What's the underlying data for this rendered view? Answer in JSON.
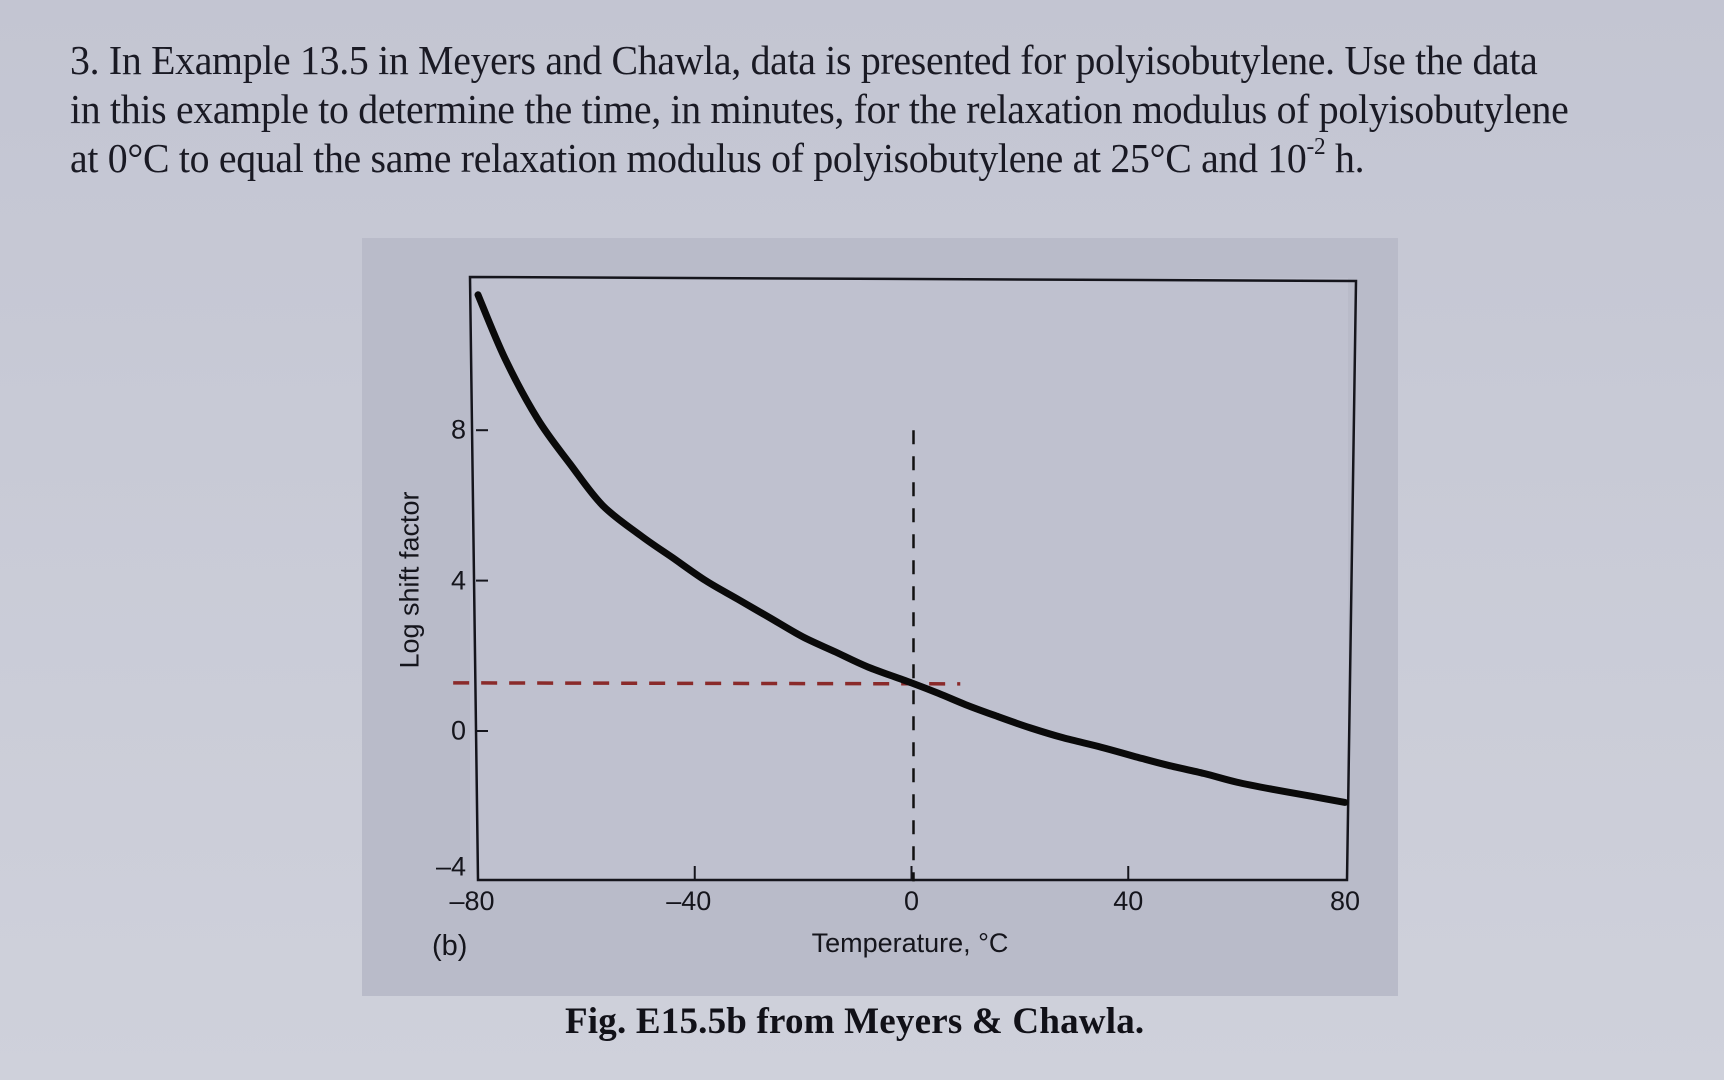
{
  "question": {
    "line1": "3.  In Example 13.5 in Meyers and Chawla, data is presented for polyisobutylene.  Use the data",
    "line2": "in this example to determine the time, in minutes, for the relaxation modulus of polyisobutylene",
    "line3_prefix": "at 0°C to equal the same relaxation modulus of polyisobutylene at 25°C and 10",
    "line3_exponent": "-2",
    "line3_suffix": " h."
  },
  "figure": {
    "panel_label": "(b)",
    "caption": "Fig. E15.5b  from Meyers & Chawla."
  },
  "chart_data": {
    "type": "line",
    "title": "",
    "xlabel": "Temperature, °C",
    "ylabel": "Log shift factor",
    "xlim": [
      -80,
      80
    ],
    "ylim": [
      -4,
      12
    ],
    "x_ticks": [
      -80,
      -40,
      0,
      40,
      80
    ],
    "x_tick_labels": [
      "–80",
      "–40",
      "0",
      "40",
      "80"
    ],
    "y_ticks": [
      -4,
      0,
      4,
      8
    ],
    "y_tick_labels": [
      "–4",
      "0",
      "4",
      "8"
    ],
    "grid": false,
    "legend": null,
    "series": [
      {
        "name": "Polyisobutylene log shift factor",
        "color": "#0a0a0a",
        "x": [
          -80,
          -75,
          -69,
          -63,
          -57,
          -50,
          -44,
          -38,
          -32,
          -26,
          -20,
          -14,
          -8,
          0,
          5,
          10,
          16,
          22,
          28,
          35,
          41,
          47,
          54,
          60,
          67,
          74,
          80
        ],
        "y": [
          11.6,
          9.9,
          8.3,
          7.1,
          6.0,
          5.2,
          4.6,
          4.0,
          3.5,
          3.0,
          2.5,
          2.1,
          1.7,
          1.28,
          1.0,
          0.7,
          0.38,
          0.08,
          -0.18,
          -0.43,
          -0.67,
          -0.9,
          -1.13,
          -1.36,
          -1.56,
          -1.74,
          -1.9
        ]
      }
    ],
    "annotations": [
      {
        "type": "vertical-dashed-line",
        "x": 0,
        "y_from": -4,
        "y_to": 8,
        "color": "#111111"
      },
      {
        "type": "horizontal-dashed-line",
        "y": 1.28,
        "x_from": -82,
        "x_to": 9,
        "color": "#8a2a2a"
      }
    ]
  }
}
